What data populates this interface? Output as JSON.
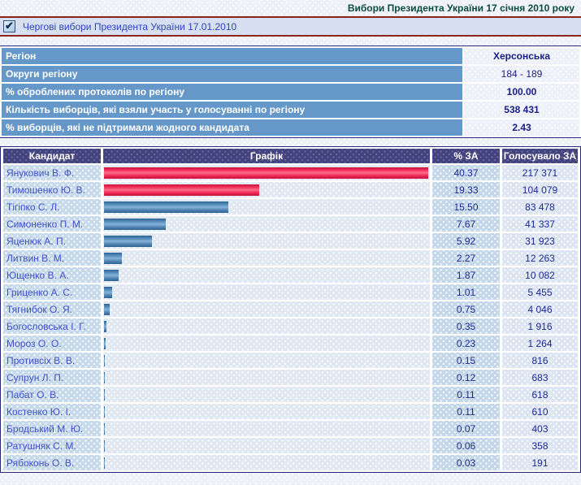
{
  "header": {
    "title": "Вибори Президента України 17 січня 2010 року",
    "election_label": "Чергові вибори Президента України 17.01.2010",
    "checkbox_checked": true,
    "checkmark_glyph": "✔"
  },
  "colors": {
    "accent_maroon": "#8b2323",
    "title_green": "#0d4a42",
    "results_header_indigo": "#42427e",
    "info_label_blue": "#6597c9",
    "bar_red": "#f2315c",
    "bar_blue": "#4b7fae",
    "candidate_text_blue": "#4152c8",
    "value_text_navy": "#1c2a96"
  },
  "region_info": {
    "rows": [
      {
        "label": "Регіон",
        "value": "Херсонська",
        "bold": true
      },
      {
        "label": "Округи регіону",
        "value": "184 - 189",
        "bold": false
      },
      {
        "label": "% оброблених протоколів по регіону",
        "value": "100.00",
        "bold": true
      },
      {
        "label": "Кількість виборців, які взяли участь у голосуванні по регіону",
        "value": "538 431",
        "bold": true
      },
      {
        "label": "% виборців, які не підтримали жодного кандидата",
        "value": "2.43",
        "bold": true
      }
    ]
  },
  "results": {
    "columns": [
      "Кандидат",
      "Графік",
      "% ЗА",
      "Голосувало ЗА"
    ],
    "rows": [
      {
        "candidate": "Янукович В. Ф.",
        "percent": "40.37",
        "votes": "217 371",
        "bar_color": "red"
      },
      {
        "candidate": "Тимошенко Ю. В.",
        "percent": "19.33",
        "votes": "104 079",
        "bar_color": "red"
      },
      {
        "candidate": "Тігіпко С. Л.",
        "percent": "15.50",
        "votes": "83 478",
        "bar_color": "blue"
      },
      {
        "candidate": "Симоненко П. М.",
        "percent": "7.67",
        "votes": "41 337",
        "bar_color": "blue"
      },
      {
        "candidate": "Яценюк А. П.",
        "percent": "5.92",
        "votes": "31 923",
        "bar_color": "blue"
      },
      {
        "candidate": "Литвин В. М.",
        "percent": "2.27",
        "votes": "12 263",
        "bar_color": "blue"
      },
      {
        "candidate": "Ющенко В. А.",
        "percent": "1.87",
        "votes": "10 082",
        "bar_color": "blue"
      },
      {
        "candidate": "Гриценко А. С.",
        "percent": "1.01",
        "votes": "5 455",
        "bar_color": "blue"
      },
      {
        "candidate": "Тягнибок О. Я.",
        "percent": "0.75",
        "votes": "4 046",
        "bar_color": "blue"
      },
      {
        "candidate": "Богословська І. Г.",
        "percent": "0.35",
        "votes": "1 916",
        "bar_color": "blue"
      },
      {
        "candidate": "Мороз О. О.",
        "percent": "0.23",
        "votes": "1 264",
        "bar_color": "blue"
      },
      {
        "candidate": "Противсіх В. В.",
        "percent": "0.15",
        "votes": "816",
        "bar_color": "blue"
      },
      {
        "candidate": "Супрун Л. П.",
        "percent": "0.12",
        "votes": "683",
        "bar_color": "blue"
      },
      {
        "candidate": "Пабат О. В.",
        "percent": "0.11",
        "votes": "618",
        "bar_color": "blue"
      },
      {
        "candidate": "Костенко Ю. І.",
        "percent": "0.11",
        "votes": "610",
        "bar_color": "blue"
      },
      {
        "candidate": "Бродський М. Ю.",
        "percent": "0.07",
        "votes": "403",
        "bar_color": "blue"
      },
      {
        "candidate": "Ратушняк С. М.",
        "percent": "0.06",
        "votes": "358",
        "bar_color": "blue"
      },
      {
        "candidate": "Рябоконь О. В.",
        "percent": "0.03",
        "votes": "191",
        "bar_color": "blue"
      }
    ]
  },
  "chart_data": {
    "type": "bar",
    "orientation": "horizontal",
    "title": "Вибори Президента України 17 січня 2010 року — Херсонська",
    "categories": [
      "Янукович В. Ф.",
      "Тимошенко Ю. В.",
      "Тігіпко С. Л.",
      "Симоненко П. М.",
      "Яценюк А. П.",
      "Литвин В. М.",
      "Ющенко В. А.",
      "Гриценко А. С.",
      "Тягнибок О. Я.",
      "Богословська І. Г.",
      "Мороз О. О.",
      "Противсіх В. В.",
      "Супрун Л. П.",
      "Пабат О. В.",
      "Костенко Ю. І.",
      "Бродський М. Ю.",
      "Ратушняк С. М.",
      "Рябоконь О. В."
    ],
    "values": [
      40.37,
      19.33,
      15.5,
      7.67,
      5.92,
      2.27,
      1.87,
      1.01,
      0.75,
      0.35,
      0.23,
      0.15,
      0.12,
      0.11,
      0.11,
      0.07,
      0.06,
      0.03
    ],
    "votes": [
      217371,
      104079,
      83478,
      41337,
      31923,
      12263,
      10082,
      5455,
      4046,
      1916,
      1264,
      816,
      683,
      618,
      610,
      403,
      358,
      191
    ],
    "xlabel": "% ЗА",
    "ylabel": "Кандидат",
    "xlim": [
      0,
      40.37
    ],
    "grid": false,
    "legend": false
  }
}
